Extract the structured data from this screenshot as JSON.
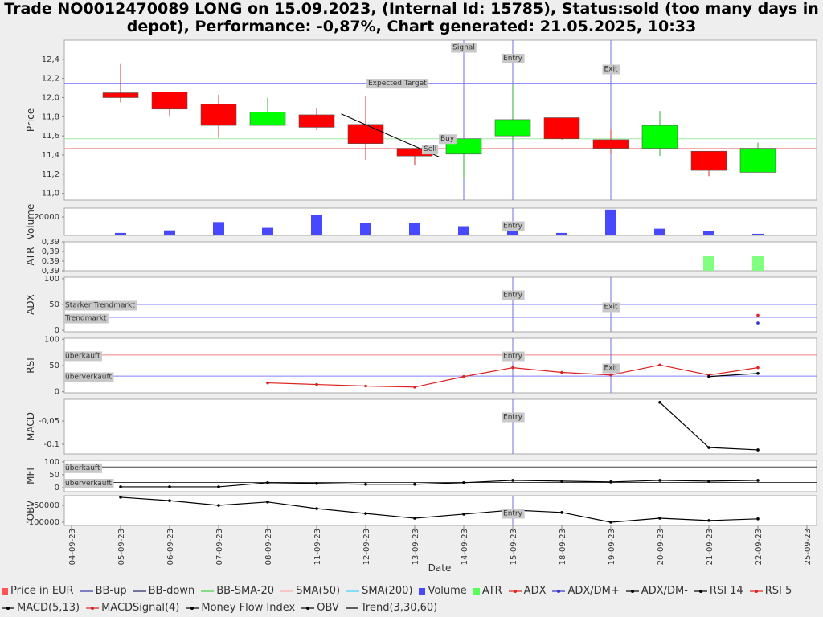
{
  "title": "Trade NO0012470089 LONG on 15.09.2023, (Internal Id: 15785), Status:sold (too many days in depot), Performance: -0,87%, Chart generated: 21.05.2025, 10:33",
  "x_axis": {
    "label": "Date",
    "categories": [
      "04-09-23",
      "05-09-23",
      "06-09-23",
      "07-09-23",
      "08-09-23",
      "11-09-23",
      "12-09-23",
      "13-09-23",
      "14-09-23",
      "15-09-23",
      "18-09-23",
      "19-09-23",
      "20-09-23",
      "21-09-23",
      "22-09-23",
      "25-09-23"
    ]
  },
  "chart_data": [
    {
      "type": "candlestick",
      "ylabel": "Price",
      "ylim": [
        10.93,
        12.6
      ],
      "yticks": [
        {
          "value": 11,
          "label": "11,0"
        },
        {
          "value": 11.2,
          "label": "11,2"
        },
        {
          "value": 11.4,
          "label": "11,4"
        },
        {
          "value": 11.6,
          "label": "11,6"
        },
        {
          "value": 11.8,
          "label": "11,8"
        },
        {
          "value": 12,
          "label": "12,0"
        },
        {
          "value": 12.2,
          "label": "12,2"
        },
        {
          "value": 12.4,
          "label": "12,4"
        }
      ],
      "up_color": "#00ff00",
      "down_color": "#ff0000",
      "open": [
        null,
        12.05,
        12.06,
        11.93,
        11.71,
        11.82,
        11.72,
        11.47,
        11.41,
        11.6,
        11.79,
        11.56,
        11.47,
        11.44,
        11.22,
        null
      ],
      "high": [
        null,
        12.35,
        12.06,
        12.03,
        12.0,
        11.89,
        12.02,
        11.47,
        11.57,
        12.13,
        11.79,
        11.67,
        11.86,
        11.44,
        11.53,
        null
      ],
      "low": [
        null,
        11.95,
        11.8,
        11.58,
        11.71,
        11.66,
        11.35,
        11.29,
        11.16,
        11.54,
        11.56,
        11.41,
        11.39,
        11.18,
        11.22,
        null
      ],
      "close": [
        null,
        12.0,
        11.88,
        11.71,
        11.85,
        11.69,
        11.52,
        11.39,
        11.57,
        11.77,
        11.57,
        11.47,
        11.71,
        11.24,
        11.47,
        null
      ],
      "hlines": [
        {
          "label": "Expected Target",
          "value": 12.15,
          "color": "#8080ff"
        },
        {
          "label": "Buy",
          "value": 11.57,
          "color": "#a0e8a0"
        },
        {
          "label": "Sell",
          "value": 11.47,
          "color": "#f0a0a0"
        }
      ],
      "markers": [
        {
          "label": "Signal",
          "x": "14-09-23"
        },
        {
          "label": "Entry",
          "x": "15-09-23"
        },
        {
          "label": "Exit",
          "x": "19-09-23"
        }
      ],
      "trend": {
        "x": [
          5.5,
          7.5
        ],
        "values": [
          11.83,
          11.38
        ],
        "color": "#000000"
      }
    },
    {
      "type": "bar",
      "ylabel": "Volume",
      "ylim": [
        0,
        29600
      ],
      "yticks": [
        20000
      ],
      "color": "#4848ff",
      "values": [
        null,
        2700,
        5500,
        14500,
        8200,
        21800,
        13600,
        13600,
        10000,
        11000,
        2700,
        28000,
        7300,
        4500,
        1800,
        null
      ],
      "markers": [
        {
          "label": "Entry",
          "x": "15-09-23"
        }
      ]
    },
    {
      "type": "bar",
      "ylabel": "ATR",
      "ylim": [
        0.388,
        0.394
      ],
      "yticks": [
        {
          "value": 0.388,
          "label": "0,39"
        },
        {
          "value": 0.39,
          "label": "0,39"
        },
        {
          "value": 0.392,
          "label": "0,39"
        },
        {
          "value": 0.394,
          "label": "0,39"
        }
      ],
      "color": "#80ff80",
      "values": [
        null,
        null,
        null,
        null,
        null,
        null,
        null,
        null,
        null,
        null,
        null,
        null,
        null,
        0.391,
        0.391,
        null
      ]
    },
    {
      "type": "line",
      "ylabel": "ADX",
      "ylim": [
        -3,
        103
      ],
      "yticks": [
        0,
        50,
        100
      ],
      "series": [
        {
          "color": "#dd2222",
          "values": [
            null,
            null,
            null,
            null,
            null,
            null,
            null,
            null,
            null,
            null,
            null,
            null,
            null,
            null,
            29,
            null
          ]
        },
        {
          "color": "#3333cc",
          "values": [
            null,
            null,
            null,
            null,
            null,
            null,
            null,
            null,
            null,
            null,
            null,
            null,
            null,
            null,
            14,
            null
          ]
        }
      ],
      "levels": [
        {
          "label": "Starker Trendmarkt",
          "value": 50,
          "color": "#8080ff"
        },
        {
          "label": "Trendmarkt",
          "value": 25,
          "color": "#8080ff"
        }
      ],
      "markers": [
        {
          "label": "Entry",
          "x": "15-09-23"
        },
        {
          "label": "Exit",
          "x": "19-09-23"
        }
      ]
    },
    {
      "type": "line",
      "ylabel": "RSI",
      "ylim": [
        -2,
        102
      ],
      "yticks": [
        0,
        50,
        100
      ],
      "series": [
        {
          "color": "#dd2222",
          "values": [
            null,
            null,
            null,
            null,
            17,
            14,
            11,
            9,
            29,
            46,
            37,
            32,
            51,
            32,
            46,
            null
          ]
        },
        {
          "color": "#000000",
          "values": [
            null,
            null,
            null,
            null,
            null,
            null,
            null,
            null,
            null,
            null,
            null,
            null,
            null,
            29,
            35,
            null
          ]
        }
      ],
      "levels": [
        {
          "label": "überkauft",
          "value": 70,
          "color": "#f08080"
        },
        {
          "label": "überverkauft",
          "value": 30,
          "color": "#8080ff"
        }
      ],
      "markers": [
        {
          "label": "Entry",
          "x": "15-09-23"
        },
        {
          "label": "Exit",
          "x": "19-09-23"
        }
      ]
    },
    {
      "type": "line",
      "ylabel": "MACD",
      "ylim": [
        -0.1207,
        -0.0034
      ],
      "yticks": [
        {
          "value": -0.1,
          "label": "-0,1"
        },
        {
          "value": -0.05,
          "label": "-0,05"
        }
      ],
      "series": [
        {
          "color": "#000000",
          "values": [
            null,
            null,
            null,
            null,
            null,
            null,
            null,
            null,
            null,
            null,
            null,
            null,
            -0.01,
            -0.107,
            -0.112,
            null
          ]
        }
      ],
      "markers": [
        {
          "label": "Entry",
          "x": "15-09-23"
        }
      ]
    },
    {
      "type": "line",
      "ylabel": "MFI",
      "ylim": [
        -16,
        106
      ],
      "yticks": [
        0,
        50,
        100
      ],
      "series": [
        {
          "color": "#000000",
          "values": [
            null,
            3,
            3,
            3,
            19,
            16,
            13,
            13,
            19,
            28,
            25,
            22,
            28,
            25,
            28,
            null
          ]
        }
      ],
      "levels": [
        {
          "label": "überkauft",
          "value": 80,
          "color": "#404040"
        },
        {
          "label": "überverkauft",
          "value": 20,
          "color": "#404040"
        }
      ]
    },
    {
      "type": "line",
      "ylabel": "OBV",
      "ylim": [
        -109500,
        -21400
      ],
      "yticks": [
        -100000,
        -50000
      ],
      "series": [
        {
          "color": "#000000",
          "values": [
            null,
            -26000,
            -36000,
            -50000,
            -40000,
            -59500,
            -74000,
            -88000,
            -76000,
            -64000,
            -71000,
            -100000,
            -88000,
            -95000,
            -90000,
            null
          ]
        }
      ],
      "markers": [
        {
          "label": "Entry",
          "x": "15-09-23"
        }
      ]
    }
  ],
  "legend": [
    {
      "name": "Price in EUR",
      "color": "#ff5555",
      "marker": "square"
    },
    {
      "name": "BB-up",
      "color": "#3333aa",
      "marker": "line"
    },
    {
      "name": "BB-down",
      "color": "#222266",
      "marker": "line"
    },
    {
      "name": "BB-SMA-20",
      "color": "#44cc44",
      "marker": "line"
    },
    {
      "name": "SMA(50)",
      "color": "#ffaaaa",
      "marker": "line"
    },
    {
      "name": "SMA(200)",
      "color": "#44ccff",
      "marker": "line"
    },
    {
      "name": "Volume",
      "color": "#4848ff",
      "marker": "square"
    },
    {
      "name": "ATR",
      "color": "#55ff55",
      "marker": "square"
    },
    {
      "name": "ADX",
      "color": "#dd2222",
      "marker": "dot-line"
    },
    {
      "name": "ADX/DM+",
      "color": "#3333cc",
      "marker": "dot-line"
    },
    {
      "name": "ADX/DM-",
      "color": "#000000",
      "marker": "dot-line"
    },
    {
      "name": "RSI 14",
      "color": "#000000",
      "marker": "dot-line"
    },
    {
      "name": "RSI 5",
      "color": "#dd2222",
      "marker": "dot-line"
    },
    {
      "name": "MACD(5,13)",
      "color": "#000000",
      "marker": "dot-line"
    },
    {
      "name": "MACDSignal(4)",
      "color": "#dd2222",
      "marker": "dot-line"
    },
    {
      "name": "Money Flow Index",
      "color": "#000000",
      "marker": "dot-line"
    },
    {
      "name": "OBV",
      "color": "#000000",
      "marker": "dot-line"
    },
    {
      "name": "Trend(3,30,60)",
      "color": "#000000",
      "marker": "line"
    }
  ]
}
